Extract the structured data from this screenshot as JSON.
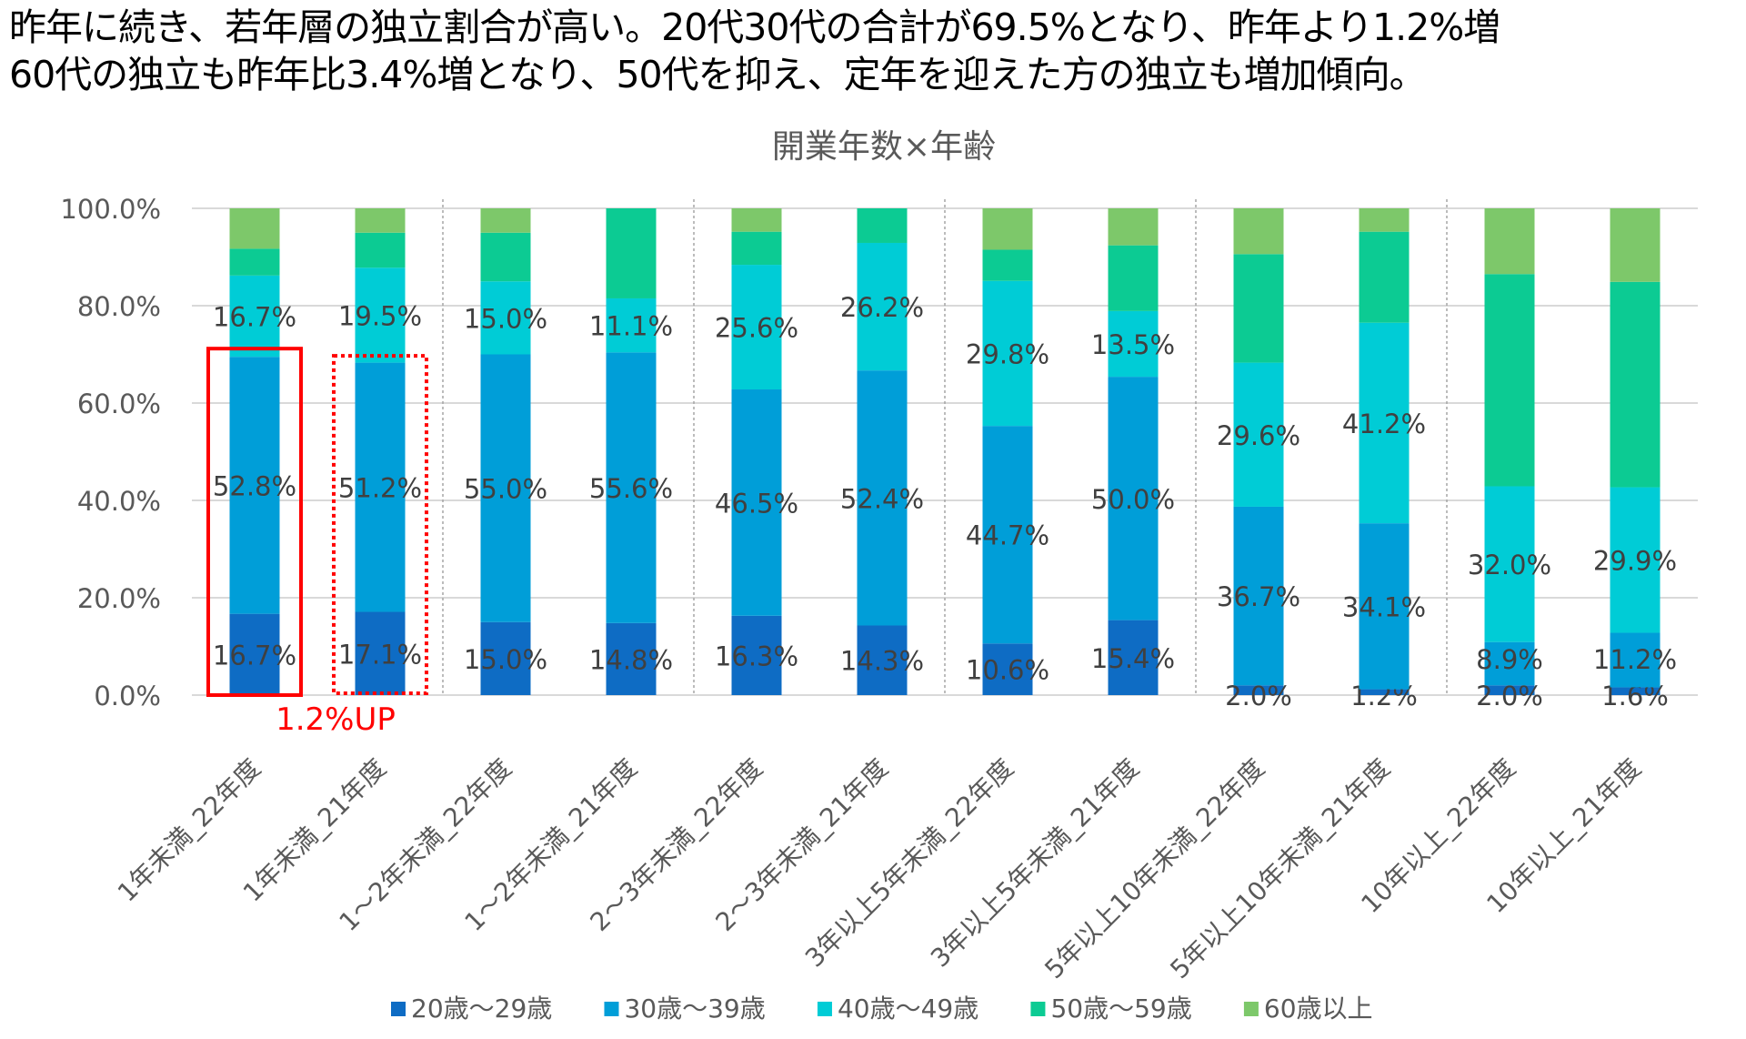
{
  "headline": {
    "line1": "昨年に続き、若年層の独立割合が高い。20代30代の合計が69.5%となり、昨年より1.2%増",
    "line2": "60代の独立も昨年比3.4%増となり、50代を抑え、定年を迎えた方の独立も増加傾向。"
  },
  "chart_data": {
    "type": "bar",
    "stacked": true,
    "title": "開業年数×年齢",
    "ylim": [
      0,
      100
    ],
    "yticks": [
      "0.0%",
      "20.0%",
      "40.0%",
      "60.0%",
      "80.0%",
      "100.0%"
    ],
    "grid": true,
    "legend_position": "bottom",
    "categories": [
      "1年未満_22年度",
      "1年未満_21年度",
      "1～2年未満_22年度",
      "1～2年未満_21年度",
      "2～3年未満_22年度",
      "2～3年未満_21年度",
      "3年以上5年未満_22年度",
      "3年以上5年未満_21年度",
      "5年以上10年未満_22年度",
      "5年以上10年未満_21年度",
      "10年以上_22年度",
      "10年以上_21年度"
    ],
    "series": [
      {
        "name": "20歳～29歳",
        "color": "#0e6cc4",
        "values": [
          16.7,
          17.1,
          15.0,
          14.8,
          16.3,
          14.3,
          10.6,
          15.4,
          2.0,
          1.2,
          2.0,
          1.6
        ],
        "labeled": true
      },
      {
        "name": "30歳～39歳",
        "color": "#009ed8",
        "values": [
          52.8,
          51.2,
          55.0,
          55.6,
          46.5,
          52.4,
          44.7,
          50.0,
          36.7,
          34.1,
          8.9,
          11.2
        ],
        "labeled": true
      },
      {
        "name": "40歳～49歳",
        "color": "#00ccd6",
        "values": [
          16.7,
          19.5,
          15.0,
          11.1,
          25.6,
          26.2,
          29.8,
          13.5,
          29.6,
          41.2,
          32.0,
          29.9
        ],
        "labeled": true
      },
      {
        "name": "50歳～59歳",
        "color": "#0ccb93",
        "values": [
          5.5,
          7.2,
          10.0,
          18.5,
          6.8,
          7.1,
          6.4,
          13.5,
          22.3,
          18.7,
          43.6,
          42.2
        ],
        "labeled": false
      },
      {
        "name": "60歳以上",
        "color": "#7dc86a",
        "values": [
          8.3,
          5.0,
          5.0,
          0.0,
          4.8,
          0.0,
          8.5,
          7.6,
          9.4,
          4.8,
          13.5,
          15.1
        ],
        "labeled": false
      }
    ],
    "annotations": [
      {
        "text": "1.2%UP",
        "color": "#ff0000",
        "highlight_categories": [
          0,
          1
        ]
      }
    ]
  }
}
